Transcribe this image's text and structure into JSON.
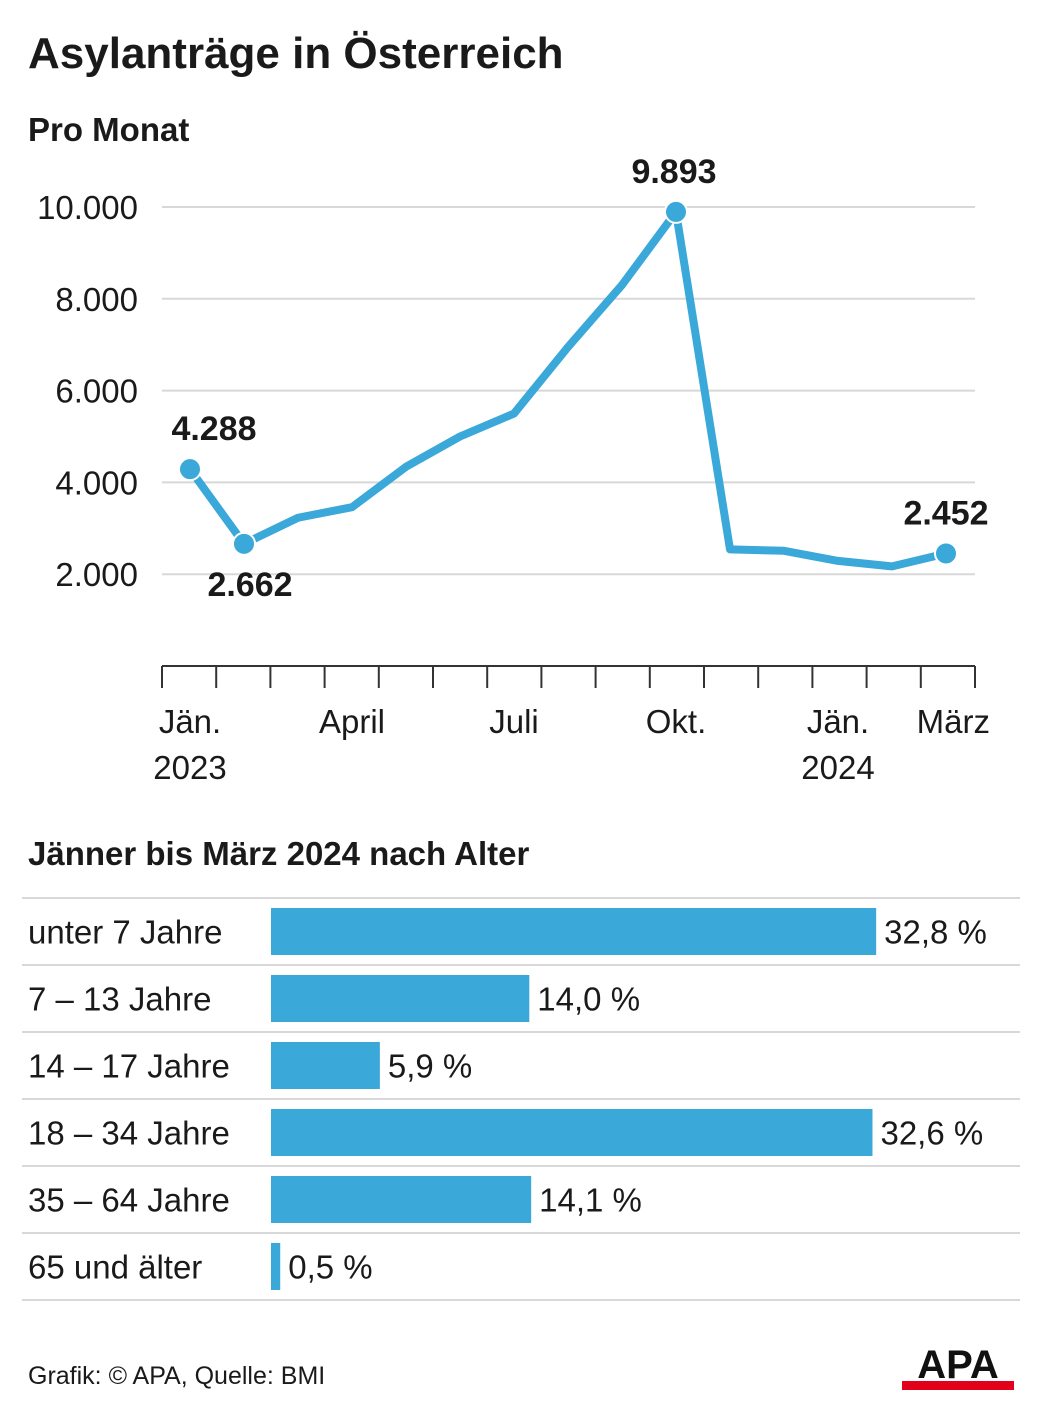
{
  "title": "Asylanträge in Österreich",
  "line_subtitle": "Pro Monat",
  "bar_subtitle": "Jänner bis März 2024 nach Alter",
  "footer": "Grafik: © APA, Quelle: BMI",
  "logo": "APA",
  "colors": {
    "series": "#3aa8d8",
    "grid": "#d8d8d8",
    "logo_bar": "#e2001a"
  },
  "chart_data": [
    {
      "type": "line",
      "title": "Pro Monat",
      "months": [
        "Jän. 2023",
        "Feb. 2023",
        "März 2023",
        "April 2023",
        "Mai 2023",
        "Juni 2023",
        "Juli 2023",
        "Aug. 2023",
        "Sept. 2023",
        "Okt. 2023",
        "Nov. 2023",
        "Dez. 2023",
        "Jän. 2024",
        "Feb. 2024",
        "März 2024"
      ],
      "values": [
        4288,
        2662,
        3230,
        3460,
        4340,
        5000,
        5500,
        6950,
        8300,
        9893,
        2540,
        2510,
        2290,
        2170,
        2452
      ],
      "ylim": [
        0,
        10000
      ],
      "yticks": [
        2000,
        4000,
        6000,
        8000,
        10000
      ],
      "ytick_labels": [
        "2.000",
        "4.000",
        "6.000",
        "8.000",
        "10.000"
      ],
      "x_tick_labels": [
        {
          "month": 0,
          "line1": "Jän.",
          "line2": "2023"
        },
        {
          "month": 3,
          "line1": "April",
          "line2": ""
        },
        {
          "month": 6,
          "line1": "Juli",
          "line2": ""
        },
        {
          "month": 9,
          "line1": "Okt.",
          "line2": ""
        },
        {
          "month": 12,
          "line1": "Jän.",
          "line2": "2024"
        },
        {
          "month": 14,
          "line1": "März",
          "line2": ""
        }
      ],
      "annotations": [
        {
          "month": 0,
          "label": "4.288",
          "position": "above"
        },
        {
          "month": 1,
          "label": "2.662",
          "position": "below"
        },
        {
          "month": 9,
          "label": "9.893",
          "position": "above"
        },
        {
          "month": 14,
          "label": "2.452",
          "position": "above"
        }
      ],
      "grid": true
    },
    {
      "type": "bar",
      "title": "Jänner bis März 2024 nach Alter",
      "orientation": "horizontal",
      "categories": [
        "unter 7 Jahre",
        "7 – 13 Jahre",
        "14 – 17 Jahre",
        "18 – 34 Jahre",
        "35 – 64 Jahre",
        "65 und älter"
      ],
      "values": [
        32.8,
        14.0,
        5.9,
        32.6,
        14.1,
        0.5
      ],
      "value_labels": [
        "32,8 %",
        "14,0 %",
        "5,9 %",
        "32,6 %",
        "14,1 %",
        "0,5 %"
      ],
      "unit": "%"
    }
  ]
}
